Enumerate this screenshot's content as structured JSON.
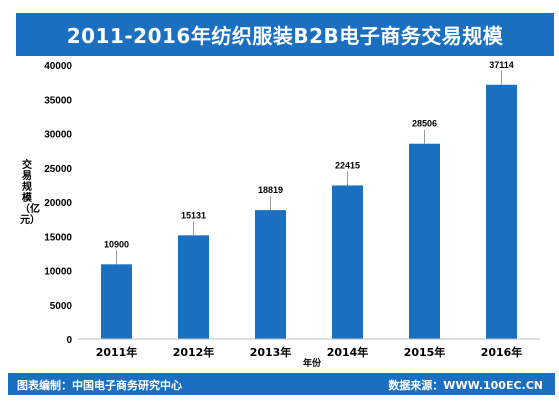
{
  "title": "2011-2016年纺织服装B2B电子商务交易规模",
  "footer": {
    "left": "图表编制：中国电子商务研究中心",
    "right": "数据来源：WWW.100EC.CN"
  },
  "colors": {
    "bar": "#1a6fc0",
    "banner": "#1a6fc0",
    "axis": "#bfbfbf"
  },
  "chart_data": {
    "type": "bar",
    "title": "2011-2016年纺织服装B2B电子商务交易规模",
    "xlabel": "年份",
    "ylabel": "交易规模（亿元）",
    "categories": [
      "2011年",
      "2012年",
      "2013年",
      "2014年",
      "2015年",
      "2016年"
    ],
    "values": [
      10900,
      15131,
      18819,
      22415,
      28506,
      37114
    ],
    "ylim": [
      0,
      40000
    ],
    "yticks": [
      0,
      5000,
      10000,
      15000,
      20000,
      25000,
      30000,
      35000,
      40000
    ],
    "grid": false,
    "legend": "none"
  }
}
